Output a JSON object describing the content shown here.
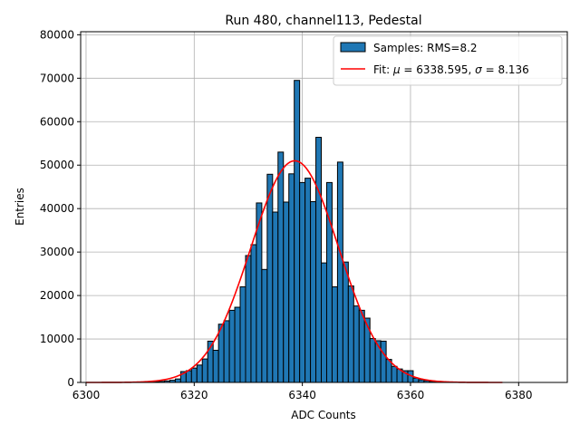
{
  "chart_data": {
    "type": "bar",
    "title": "Run 480, channel113, Pedestal",
    "xlabel": "ADC Counts",
    "ylabel": "Entries",
    "xlim": [
      6299.0,
      6389.0
    ],
    "ylim": [
      0,
      80700
    ],
    "xticks": [
      6300,
      6320,
      6340,
      6360,
      6380
    ],
    "yticks": [
      0,
      10000,
      20000,
      30000,
      40000,
      50000,
      60000,
      70000,
      80000
    ],
    "grid": true,
    "legend_position": "top-right",
    "series": [
      {
        "name": "Samples: RMS=8.2",
        "kind": "histogram",
        "bin_width": 1,
        "bins": [
          [
            6311,
            50
          ],
          [
            6312,
            100
          ],
          [
            6313,
            150
          ],
          [
            6314,
            250
          ],
          [
            6315,
            350
          ],
          [
            6316,
            500
          ],
          [
            6317,
            800
          ],
          [
            6318,
            2500
          ],
          [
            6319,
            2700
          ],
          [
            6320,
            3300
          ],
          [
            6321,
            4000
          ],
          [
            6322,
            5400
          ],
          [
            6323,
            9500
          ],
          [
            6324,
            7400
          ],
          [
            6325,
            13400
          ],
          [
            6326,
            14200
          ],
          [
            6327,
            16600
          ],
          [
            6328,
            17300
          ],
          [
            6329,
            22000
          ],
          [
            6330,
            29200
          ],
          [
            6331,
            31700
          ],
          [
            6332,
            41300
          ],
          [
            6333,
            26000
          ],
          [
            6334,
            47900
          ],
          [
            6335,
            39200
          ],
          [
            6336,
            53000
          ],
          [
            6337,
            41500
          ],
          [
            6338,
            48000
          ],
          [
            6339,
            69500
          ],
          [
            6340,
            46000
          ],
          [
            6341,
            47000
          ],
          [
            6342,
            41600
          ],
          [
            6343,
            56400
          ],
          [
            6344,
            27500
          ],
          [
            6345,
            46000
          ],
          [
            6346,
            22000
          ],
          [
            6347,
            50700
          ],
          [
            6348,
            27700
          ],
          [
            6349,
            22200
          ],
          [
            6350,
            17600
          ],
          [
            6351,
            16600
          ],
          [
            6352,
            14800
          ],
          [
            6353,
            10100
          ],
          [
            6354,
            9600
          ],
          [
            6355,
            9500
          ],
          [
            6356,
            5300
          ],
          [
            6357,
            3700
          ],
          [
            6358,
            3100
          ],
          [
            6359,
            2700
          ],
          [
            6360,
            2700
          ],
          [
            6361,
            1000
          ],
          [
            6362,
            600
          ],
          [
            6363,
            400
          ],
          [
            6364,
            250
          ],
          [
            6365,
            150
          ],
          [
            6366,
            80
          ],
          [
            6367,
            40
          ]
        ]
      },
      {
        "name": "Fit: μ = 6338.595, σ = 8.136",
        "legend_label_parts": [
          "Fit: ",
          "μ",
          " = 6338.595, ",
          "σ",
          " = 8.136"
        ],
        "kind": "gaussian",
        "mu": 6338.595,
        "sigma": 8.136,
        "amplitude": 51000,
        "x_range": [
          6300,
          6377
        ]
      }
    ]
  },
  "colors": {
    "bar_fill": "#1f77b4",
    "bar_edge": "#000000",
    "fit_line": "#ff0000",
    "grid": "#b0b0b0"
  }
}
